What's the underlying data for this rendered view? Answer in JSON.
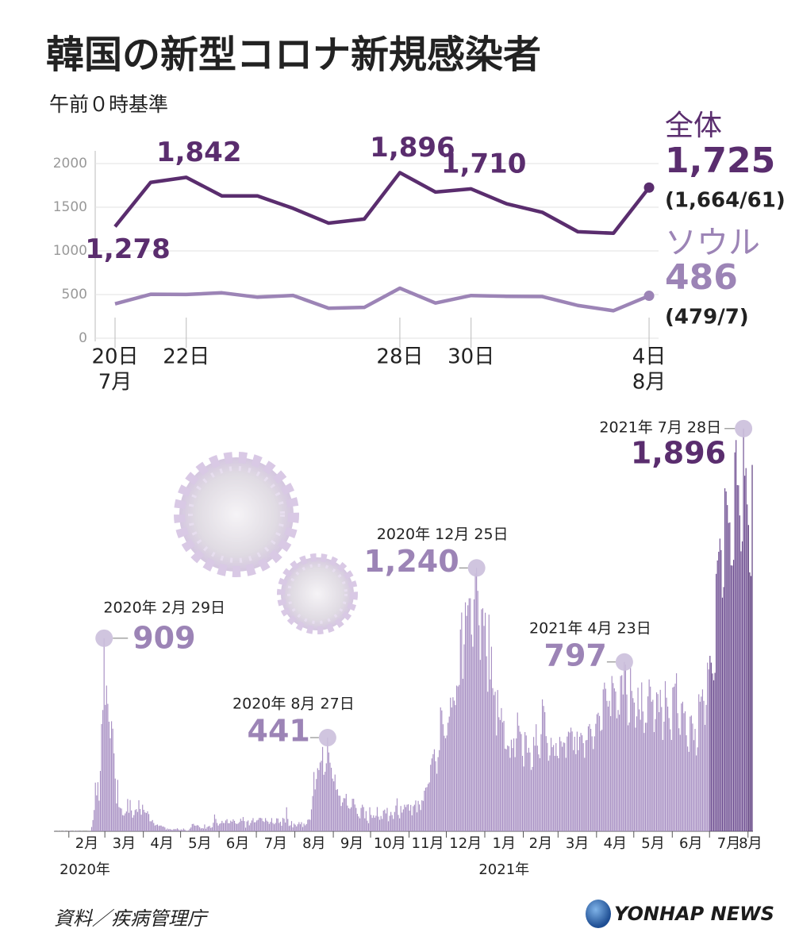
{
  "chart_data": [
    {
      "type": "line",
      "title": "韓国の新型コロナ新規感染者",
      "subtitle": "午前０時基準",
      "categories": [
        "20日",
        null,
        "22日",
        null,
        null,
        null,
        null,
        null,
        "28日",
        null,
        "30日",
        null,
        null,
        null,
        null,
        "4日"
      ],
      "month_labels": [
        "7月",
        null,
        null,
        null,
        null,
        null,
        null,
        null,
        null,
        null,
        null,
        null,
        null,
        null,
        null,
        "8月"
      ],
      "ylim": [
        0,
        2000
      ],
      "yticks": [
        0,
        500,
        1000,
        1500,
        2000
      ],
      "grid": true,
      "series": [
        {
          "name": "全体",
          "color": "#5a2d6e",
          "values": [
            1278,
            1784,
            1842,
            1630,
            1629,
            1487,
            1318,
            1365,
            1896,
            1674,
            1710,
            1539,
            1442,
            1219,
            1202,
            1725
          ],
          "value_labels": [
            "1,278",
            null,
            "1,842",
            null,
            null,
            null,
            null,
            null,
            "1,896",
            null,
            "1,710",
            null,
            null,
            null,
            null,
            "1,725"
          ],
          "note": "(1,664/61)"
        },
        {
          "name": "ソウル",
          "color": "#9c84b6",
          "values": [
            394,
            503,
            501,
            520,
            470,
            490,
            343,
            353,
            573,
            403,
            489,
            480,
            477,
            375,
            315,
            486
          ],
          "note": "(479/7)"
        }
      ]
    },
    {
      "type": "bar",
      "color": "#a991c4",
      "ylim": [
        0,
        2000
      ],
      "months": [
        {
          "label": null,
          "year": "2020年",
          "values": [
            1,
            0,
            0,
            1,
            0,
            1,
            0,
            0,
            2,
            0,
            0,
            1
          ]
        },
        {
          "label": "2月",
          "values": [
            1,
            3,
            0,
            0,
            2,
            0,
            1,
            3,
            0,
            0,
            1,
            0,
            0,
            0,
            0,
            1,
            1,
            1,
            20,
            53,
            100,
            229,
            169,
            231,
            144,
            284,
            505,
            571,
            909
          ],
          "value_labels": [
            null,
            null,
            null,
            null,
            null,
            null,
            null,
            null,
            null,
            null,
            null,
            null,
            null,
            null,
            null,
            null,
            null,
            null,
            null,
            null,
            null,
            null,
            null,
            null,
            null,
            null,
            null,
            null,
            "909"
          ],
          "date_labels": [
            null,
            null,
            null,
            null,
            null,
            null,
            null,
            null,
            null,
            null,
            null,
            null,
            null,
            null,
            null,
            null,
            null,
            null,
            null,
            null,
            null,
            null,
            null,
            null,
            null,
            null,
            null,
            null,
            "2020年 2月 29日"
          ]
        },
        {
          "label": "3月",
          "values": [
            595,
            686,
            600,
            516,
            438,
            518,
            483,
            367,
            248,
            131,
            242,
            114,
            110,
            107,
            76,
            74,
            84,
            93,
            152,
            87,
            147,
            98,
            64,
            76,
            100,
            104,
            91,
            146,
            105,
            78,
            125
          ]
        },
        {
          "label": "4月",
          "values": [
            101,
            89,
            86,
            94,
            81,
            47,
            47,
            53,
            39,
            27,
            30,
            32,
            25,
            27,
            27,
            22,
            22,
            18,
            8,
            13,
            9,
            11,
            8,
            6,
            10,
            10,
            10,
            14,
            9,
            4
          ]
        },
        {
          "label": "5月",
          "values": [
            9,
            6,
            13,
            8,
            3,
            2,
            4,
            12,
            18,
            34,
            35,
            27,
            26,
            29,
            27,
            19,
            13,
            15,
            13,
            32,
            12,
            20,
            23,
            25,
            16,
            19,
            40,
            79,
            58,
            39,
            27
          ]
        },
        {
          "label": "6月",
          "values": [
            35,
            38,
            49,
            39,
            39,
            51,
            57,
            38,
            38,
            50,
            45,
            56,
            49,
            37,
            34,
            37,
            43,
            59,
            49,
            67,
            48,
            17,
            46,
            51,
            28,
            39,
            51,
            62,
            42,
            43
          ]
        },
        {
          "label": "7月",
          "values": [
            51,
            54,
            63,
            63,
            61,
            48,
            44,
            62,
            50,
            45,
            35,
            44,
            62,
            39,
            33,
            39,
            61,
            60,
            39,
            45,
            26,
            63,
            59,
            41,
            113,
            58,
            25,
            28,
            48,
            18,
            36
          ]
        },
        {
          "label": "8月",
          "values": [
            31,
            23,
            33,
            43,
            33,
            43,
            20,
            36,
            28,
            34,
            54,
            56,
            54,
            103,
            166,
            279,
            197,
            246,
            297,
            288,
            324,
            332,
            397,
            266,
            280,
            320,
            441,
            371,
            323,
            299,
            248
          ],
          "value_labels": [
            null,
            null,
            null,
            null,
            null,
            null,
            null,
            null,
            null,
            null,
            null,
            null,
            null,
            null,
            null,
            null,
            null,
            null,
            null,
            null,
            null,
            null,
            null,
            null,
            null,
            null,
            "441",
            null,
            null,
            null,
            null
          ],
          "date_labels": [
            null,
            null,
            null,
            null,
            null,
            null,
            null,
            null,
            null,
            null,
            null,
            null,
            null,
            null,
            null,
            null,
            null,
            null,
            null,
            null,
            null,
            null,
            null,
            null,
            null,
            null,
            "2020年 8月 27日",
            null,
            null,
            null,
            null
          ]
        },
        {
          "label": "9月",
          "values": [
            235,
            267,
            195,
            198,
            168,
            167,
            119,
            136,
            156,
            155,
            176,
            121,
            109,
            106,
            113,
            153,
            153,
            126,
            110,
            82,
            70,
            61,
            110,
            125,
            114,
            61,
            95,
            50,
            38,
            113
          ]
        },
        {
          "label": "10月",
          "values": [
            77,
            63,
            75,
            64,
            73,
            114,
            69,
            54,
            72,
            58,
            97,
            102,
            84,
            110,
            47,
            73,
            91,
            76,
            58,
            91,
            121,
            155,
            77,
            61,
            119,
            88,
            103,
            125,
            114,
            125,
            127
          ]
        },
        {
          "label": "11月",
          "values": [
            97,
            124,
            75,
            118,
            125,
            145,
            89,
            143,
            126,
            100,
            146,
            143,
            191,
            205,
            208,
            223,
            230,
            313,
            343,
            363,
            386,
            330,
            271,
            349,
            382,
            583,
            569,
            504,
            450,
            438
          ]
        },
        {
          "label": "12月",
          "values": [
            451,
            511,
            540,
            629,
            583,
            631,
            615,
            594,
            686,
            682,
            689,
            950,
            1030,
            718,
            880,
            1078,
            1014,
            1064,
            1097,
            1097,
            926,
            869,
            1092,
            1214,
            1240,
            1132,
            970,
            807,
            1045,
            1050,
            967
          ],
          "value_labels": [
            null,
            null,
            null,
            null,
            null,
            null,
            null,
            null,
            null,
            null,
            null,
            null,
            null,
            null,
            null,
            null,
            null,
            null,
            null,
            null,
            null,
            null,
            null,
            null,
            "1,240",
            null,
            null,
            null,
            null,
            null,
            null
          ],
          "date_labels": [
            null,
            null,
            null,
            null,
            null,
            null,
            null,
            null,
            null,
            null,
            null,
            null,
            null,
            null,
            null,
            null,
            null,
            null,
            null,
            null,
            null,
            null,
            null,
            null,
            "2020年 12月 25日",
            null,
            null,
            null,
            null,
            null,
            null
          ]
        },
        {
          "label": "1月",
          "year": "2021年",
          "values": [
            1029,
            824,
            657,
            1020,
            715,
            869,
            674,
            641,
            657,
            451,
            665,
            537,
            524,
            580,
            513,
            520,
            389,
            386,
            404,
            400,
            346,
            431,
            392,
            437,
            349,
            437,
            559,
            497,
            469,
            458,
            355
          ]
        },
        {
          "label": "2月",
          "values": [
            305,
            467,
            451,
            370,
            393,
            371,
            289,
            303,
            444,
            403,
            504,
            403,
            362,
            344,
            457,
            621,
            590,
            561,
            448,
            416,
            332,
            357,
            440,
            396,
            406,
            355,
            415,
            355
          ]
        },
        {
          "label": "3月",
          "values": [
            344,
            444,
            424,
            398,
            418,
            416,
            346,
            446,
            469,
            465,
            488,
            470,
            382,
            445,
            363,
            469,
            382,
            445,
            463,
            452,
            415,
            346,
            428,
            430,
            494,
            505,
            482,
            447,
            387,
            447,
            506
          ]
        },
        {
          "label": "4月",
          "values": [
            551,
            558,
            543,
            473,
            478,
            668,
            700,
            671,
            614,
            587,
            614,
            542,
            731,
            698,
            673,
            658,
            532,
            571,
            549,
            731,
            735,
            644,
            797,
            785,
            644,
            499,
            512,
            769,
            661,
            627
          ],
          "value_labels": [
            null,
            null,
            null,
            null,
            null,
            null,
            null,
            null,
            null,
            null,
            null,
            null,
            null,
            null,
            null,
            null,
            null,
            null,
            null,
            null,
            null,
            null,
            "797",
            null,
            null,
            null,
            null,
            null,
            null,
            null
          ],
          "date_labels": [
            null,
            null,
            null,
            null,
            null,
            null,
            null,
            null,
            null,
            null,
            null,
            null,
            null,
            null,
            null,
            null,
            null,
            null,
            null,
            null,
            null,
            null,
            "2021年 4月 23日",
            null,
            null,
            null,
            null,
            null,
            null,
            null
          ]
        },
        {
          "label": "5月",
          "values": [
            606,
            488,
            541,
            676,
            574,
            525,
            701,
            564,
            463,
            511,
            511,
            635,
            715,
            681,
            610,
            619,
            467,
            528,
            654,
            646,
            561,
            666,
            585,
            430,
            516,
            707,
            629,
            587,
            533,
            480,
            430
          ]
        },
        {
          "label": "6月",
          "values": [
            677,
            681,
            695,
            744,
            556,
            485,
            454,
            602,
            610,
            556,
            565,
            452,
            399,
            374,
            540,
            545,
            507,
            429,
            482,
            357,
            395,
            645,
            610,
            634,
            668,
            614,
            501,
            595,
            794,
            762
          ]
        },
        {
          "label": "7月",
          "color": "#6f4f92",
          "values": [
            826,
            794,
            743,
            711,
            746,
            1212,
            1275,
            1316,
            1378,
            1324,
            1100,
            1150,
            1615,
            1600,
            1536,
            1452,
            1454,
            1252,
            1251,
            1278,
            1784,
            1842,
            1630,
            1629,
            1487,
            1318,
            1365,
            1896,
            1674,
            1710,
            1539
          ],
          "value_labels": [
            null,
            null,
            null,
            null,
            null,
            null,
            null,
            null,
            null,
            null,
            null,
            null,
            null,
            null,
            null,
            null,
            null,
            null,
            null,
            null,
            null,
            null,
            null,
            null,
            null,
            null,
            null,
            "1,896",
            null,
            null,
            null
          ],
          "date_labels": [
            null,
            null,
            null,
            null,
            null,
            null,
            null,
            null,
            null,
            null,
            null,
            null,
            null,
            null,
            null,
            null,
            null,
            null,
            null,
            null,
            null,
            null,
            null,
            null,
            null,
            null,
            null,
            "2021年 7月 28日",
            null,
            null,
            null
          ]
        },
        {
          "label": "8月",
          "color": "#5a3a7c",
          "values": [
            1442,
            1219,
            1202,
            1725
          ]
        }
      ]
    }
  ],
  "footer": {
    "source": "資料／疾病管理庁",
    "logo": "YONHAP NEWS"
  }
}
